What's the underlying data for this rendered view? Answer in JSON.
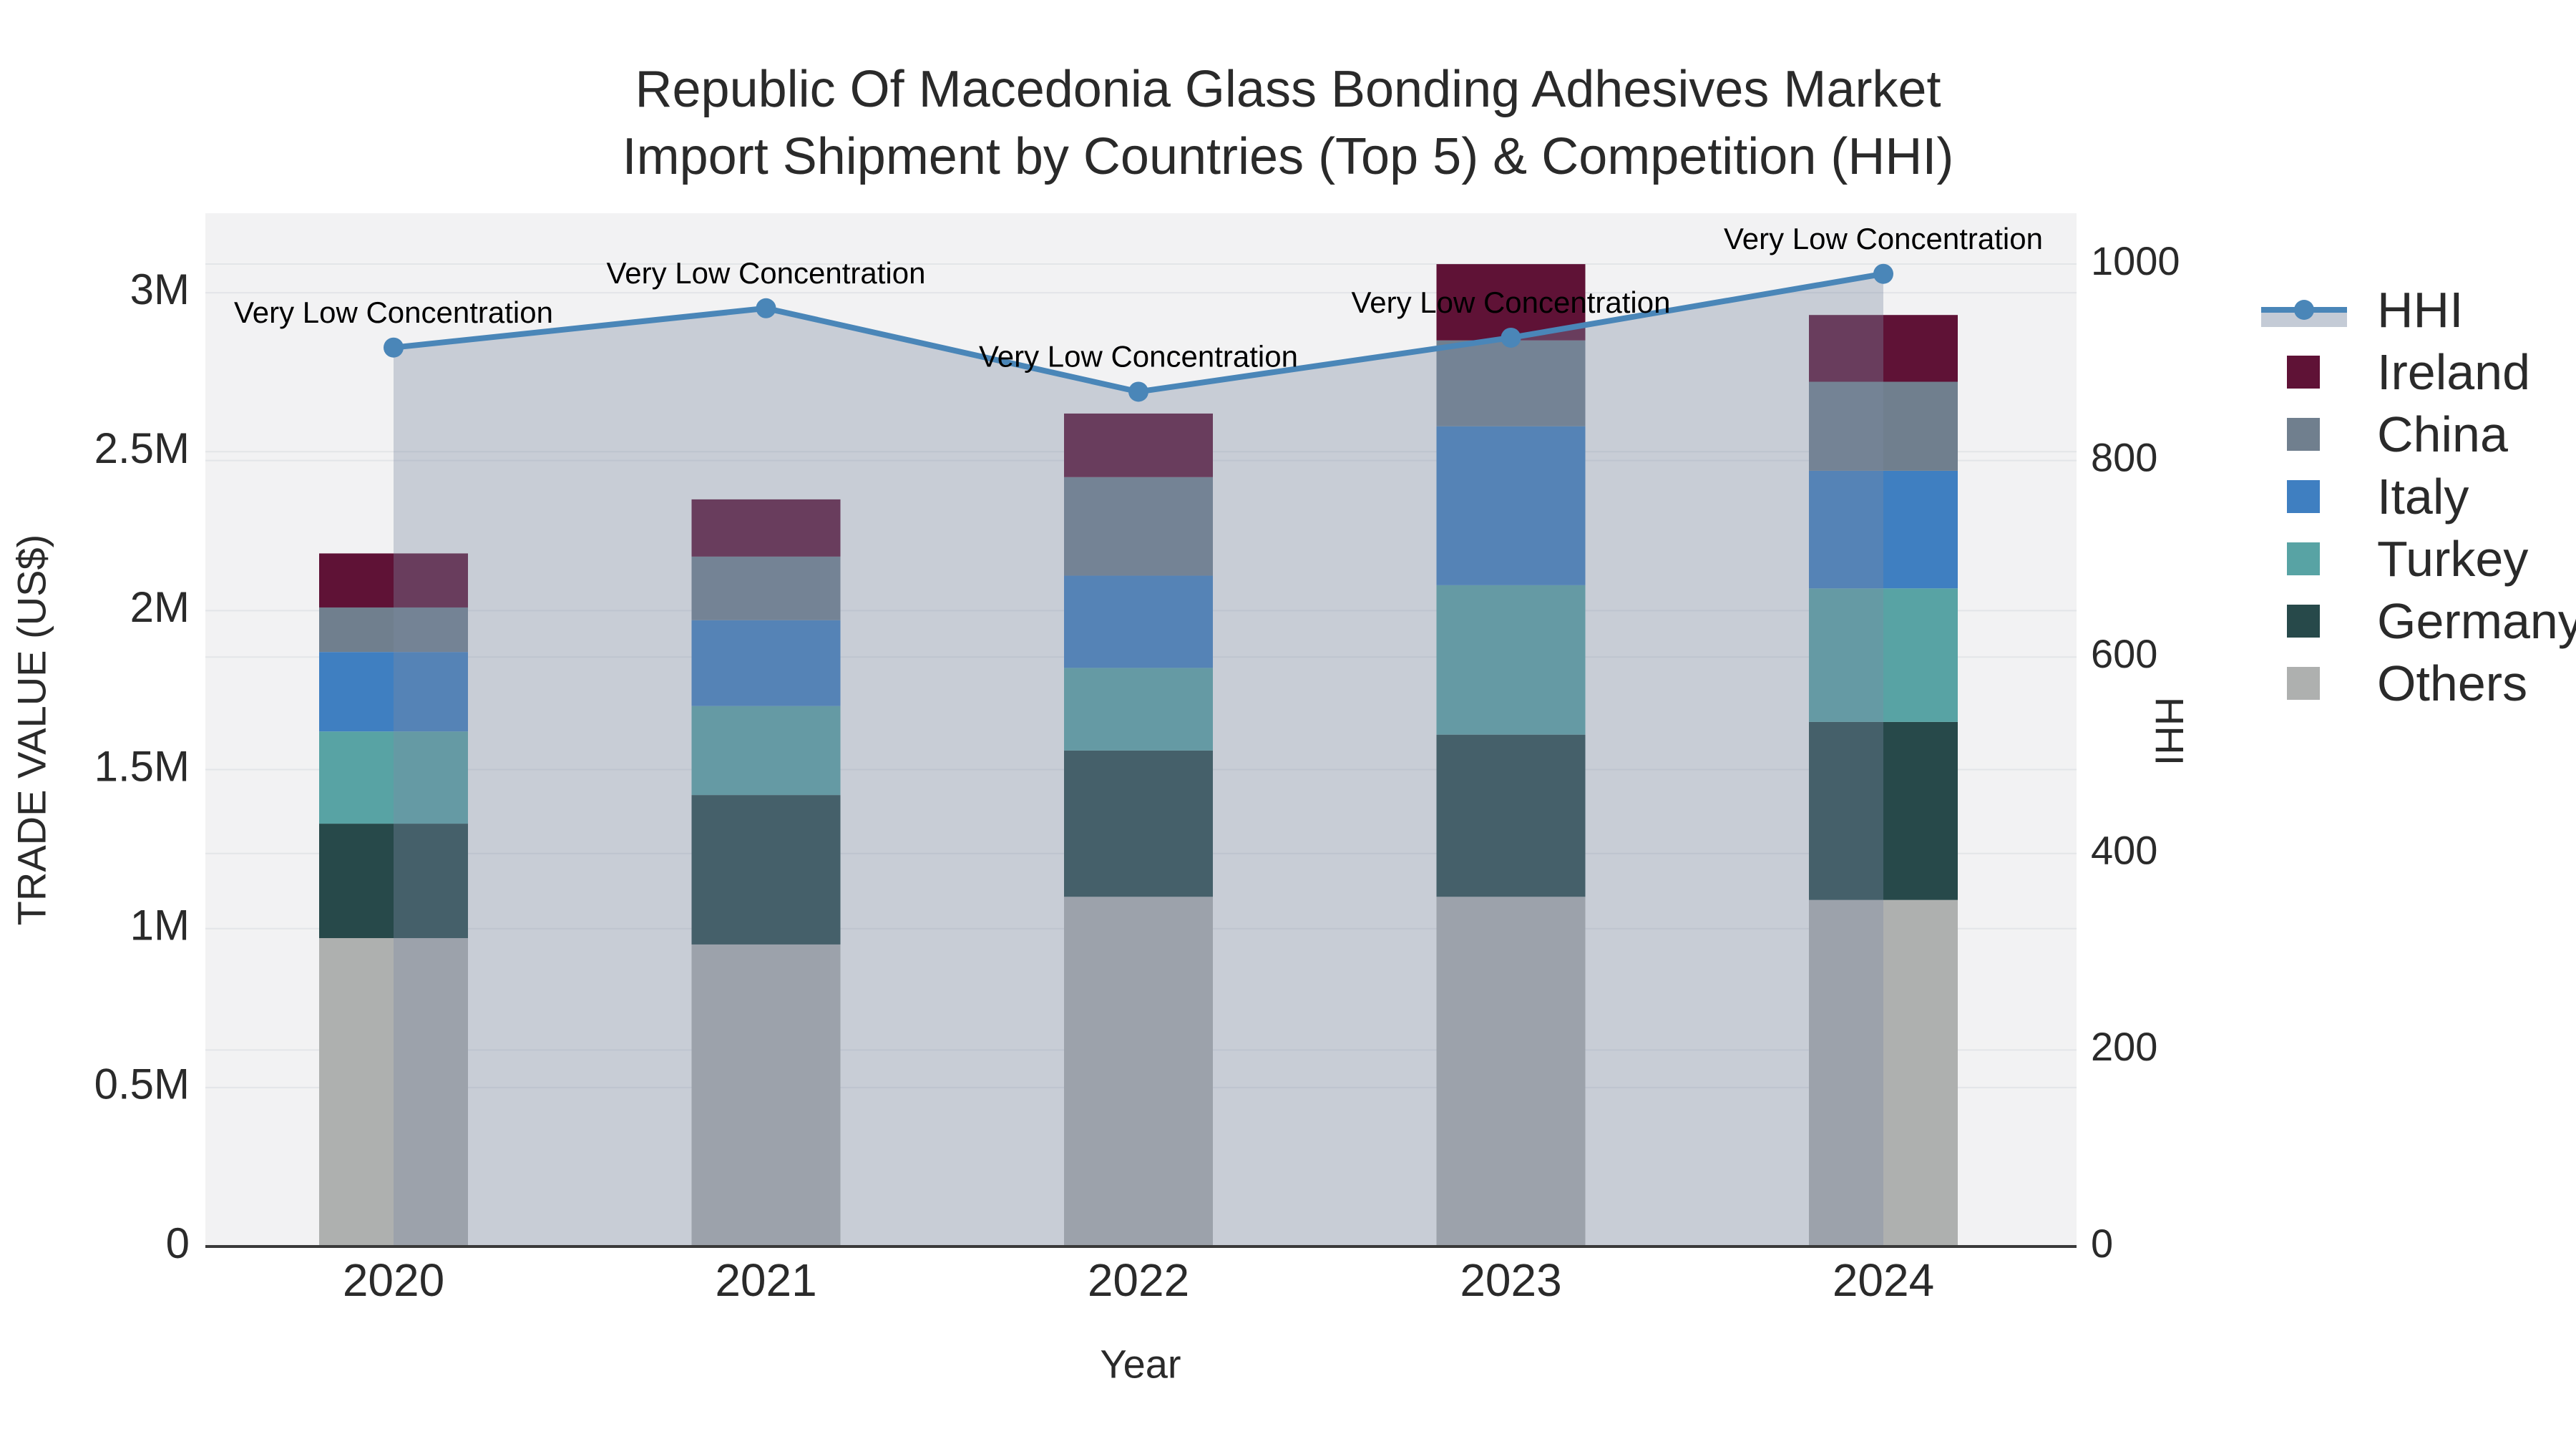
{
  "title": {
    "line1": "Republic Of Macedonia Glass Bonding Adhesives Market",
    "line2": "Import Shipment by Countries (Top 5) & Competition (HHI)"
  },
  "axes": {
    "y_left": {
      "title": "TRADE VALUE (US$)",
      "tick_labels": [
        "0",
        "0.5M",
        "1M",
        "1.5M",
        "2M",
        "2.5M",
        "3M"
      ],
      "tick_values_musd": [
        0,
        0.5,
        1,
        1.5,
        2,
        2.5,
        3
      ]
    },
    "y_right": {
      "title": "HHI",
      "tick_labels": [
        "0",
        "200",
        "400",
        "600",
        "800",
        "1000"
      ],
      "tick_values": [
        0,
        200,
        400,
        600,
        800,
        1000
      ]
    },
    "x": {
      "title": "Year",
      "tick_labels": [
        "2020",
        "2021",
        "2022",
        "2023",
        "2024"
      ]
    }
  },
  "legend": {
    "items": [
      {
        "label": "HHI",
        "type": "line",
        "color": "#4a86b8"
      },
      {
        "label": "Ireland",
        "type": "swatch",
        "color": "#5f1236"
      },
      {
        "label": "China",
        "type": "swatch",
        "color": "#707f8e"
      },
      {
        "label": "Italy",
        "type": "swatch",
        "color": "#3f7fc1"
      },
      {
        "label": "Turkey",
        "type": "swatch",
        "color": "#58a3a4"
      },
      {
        "label": "Germany",
        "type": "swatch",
        "color": "#27494a"
      },
      {
        "label": "Others",
        "type": "swatch",
        "color": "#aeb0af"
      }
    ]
  },
  "chart_data": {
    "type": "bar+line",
    "title": "Republic Of Macedonia Glass Bonding Adhesives Market Import Shipment by Countries (Top 5) & Competition (HHI)",
    "categories": [
      "2020",
      "2021",
      "2022",
      "2023",
      "2024"
    ],
    "bar_unit": "USD millions",
    "stack_order_bottom_to_top": [
      "Others",
      "Germany",
      "Turkey",
      "Italy",
      "China",
      "Ireland"
    ],
    "series": [
      {
        "name": "Others",
        "color": "#aeb0af",
        "values": [
          0.97,
          0.95,
          1.1,
          1.1,
          1.09
        ]
      },
      {
        "name": "Germany",
        "color": "#27494a",
        "values": [
          0.36,
          0.47,
          0.46,
          0.51,
          0.56
        ]
      },
      {
        "name": "Turkey",
        "color": "#58a3a4",
        "values": [
          0.29,
          0.28,
          0.26,
          0.47,
          0.42
        ]
      },
      {
        "name": "Italy",
        "color": "#3f7fc1",
        "values": [
          0.25,
          0.27,
          0.29,
          0.5,
          0.37
        ]
      },
      {
        "name": "China",
        "color": "#707f8e",
        "values": [
          0.14,
          0.2,
          0.31,
          0.27,
          0.28
        ]
      },
      {
        "name": "Ireland",
        "color": "#5f1236",
        "values": [
          0.17,
          0.18,
          0.2,
          0.24,
          0.21
        ]
      }
    ],
    "bar_totals_musd": [
      2.18,
      2.35,
      2.62,
      3.09,
      2.93
    ],
    "line_series": {
      "name": "HHI",
      "axis": "right",
      "color": "#4a86b8",
      "area_fill": "rgba(124,139,164,0.36)",
      "values": [
        915,
        955,
        870,
        925,
        990
      ]
    },
    "annotations": [
      {
        "x": "2020",
        "text": "Very Low Concentration"
      },
      {
        "x": "2021",
        "text": "Very Low Concentration"
      },
      {
        "x": "2022",
        "text": "Very Low Concentration"
      },
      {
        "x": "2023",
        "text": "Very Low Concentration"
      },
      {
        "x": "2024",
        "text": "Very Low Concentration"
      }
    ],
    "layout_hints": {
      "y_left_range_musd": [
        0,
        3.25
      ],
      "y_right_range": [
        0,
        1000
      ],
      "grid": true,
      "legend_position": "right",
      "plot_background": "#f2f2f3"
    }
  }
}
